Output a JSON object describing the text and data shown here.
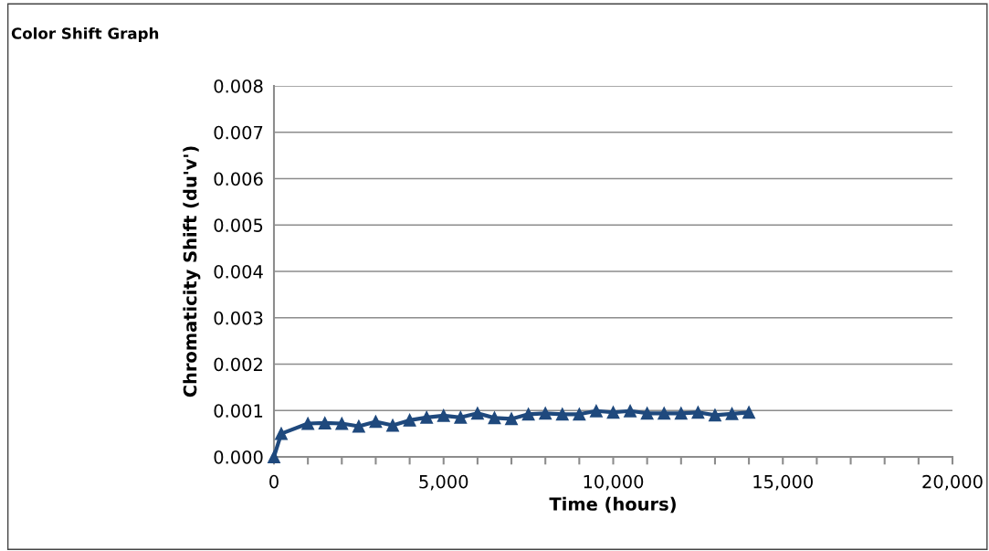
{
  "chart_data": {
    "type": "line",
    "title": "Color Shift Graph",
    "xlabel": "Time (hours)",
    "ylabel": "Chromaticity Shift (du'v')",
    "x": [
      0,
      215,
      1000,
      1500,
      2000,
      2500,
      3000,
      3500,
      4000,
      4500,
      5000,
      5500,
      6000,
      6500,
      7000,
      7500,
      8000,
      8500,
      9000,
      9500,
      10000,
      10500,
      11000,
      11500,
      12000,
      12500,
      13000,
      13500,
      14000
    ],
    "series": [
      {
        "color": "#1f497d",
        "values": [
          0,
          0.0005,
          0.00072,
          0.00073,
          0.00072,
          0.00066,
          0.00076,
          0.00068,
          0.00079,
          0.00085,
          0.00089,
          0.00085,
          0.00094,
          0.00084,
          0.00082,
          0.00092,
          0.00094,
          0.00092,
          0.00092,
          0.00099,
          0.00096,
          0.00099,
          0.00094,
          0.00094,
          0.00094,
          0.00096,
          0.0009,
          0.00093,
          0.00096
        ]
      }
    ],
    "marker": "triangle",
    "line_style": "solid",
    "grid": "y",
    "xlim": [
      0,
      20000
    ],
    "ylim": [
      0,
      0.008
    ],
    "xticks": [
      {
        "value": 0,
        "label": "0"
      },
      {
        "value": 1000,
        "label": null
      },
      {
        "value": 2000,
        "label": null
      },
      {
        "value": 3000,
        "label": null
      },
      {
        "value": 4000,
        "label": null
      },
      {
        "value": 5000,
        "label": "5,000"
      },
      {
        "value": 6000,
        "label": null
      },
      {
        "value": 7000,
        "label": null
      },
      {
        "value": 8000,
        "label": null
      },
      {
        "value": 9000,
        "label": null
      },
      {
        "value": 10000,
        "label": "10,000"
      },
      {
        "value": 11000,
        "label": null
      },
      {
        "value": 12000,
        "label": null
      },
      {
        "value": 13000,
        "label": null
      },
      {
        "value": 14000,
        "label": null
      },
      {
        "value": 15000,
        "label": "15,000"
      },
      {
        "value": 16000,
        "label": null
      },
      {
        "value": 17000,
        "label": null
      },
      {
        "value": 18000,
        "label": null
      },
      {
        "value": 19000,
        "label": null
      },
      {
        "value": 20000,
        "label": "20,000"
      }
    ],
    "yticks": [
      {
        "value": 0,
        "label": "0.000"
      },
      {
        "value": 0.001,
        "label": "0.001"
      },
      {
        "value": 0.002,
        "label": "0.002"
      },
      {
        "value": 0.003,
        "label": "0.003"
      },
      {
        "value": 0.004,
        "label": "0.004"
      },
      {
        "value": 0.005,
        "label": "0.005"
      },
      {
        "value": 0.006,
        "label": "0.006"
      },
      {
        "value": 0.007,
        "label": "0.007"
      },
      {
        "value": 0.008,
        "label": "0.008"
      }
    ]
  }
}
